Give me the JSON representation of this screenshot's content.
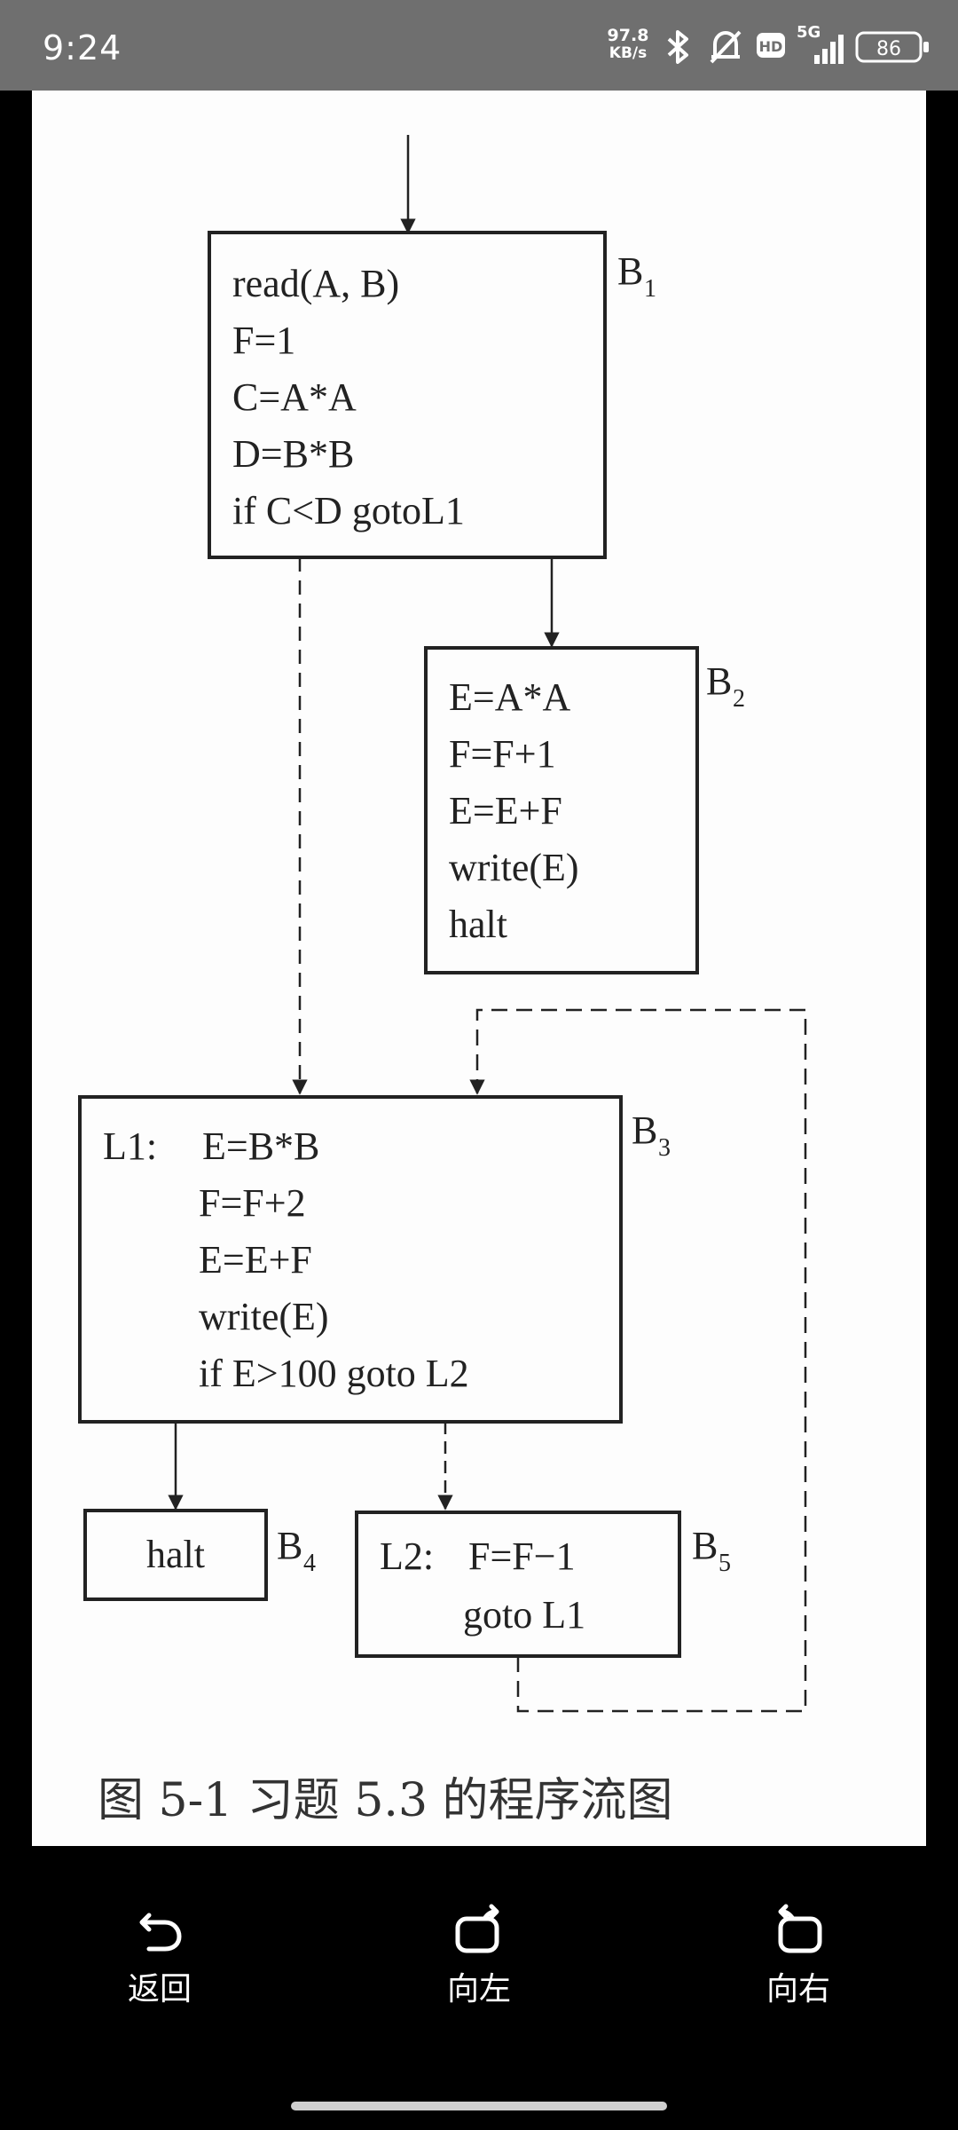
{
  "status_bar": {
    "time": "9:24",
    "net_speed_value": "97.8",
    "net_speed_unit": "KB/s",
    "hd_badge": "HD",
    "network_type": "5G",
    "battery": "86",
    "icons": [
      "bluetooth-icon",
      "mute-bell-icon",
      "hd-icon",
      "signal-icon",
      "battery-icon"
    ]
  },
  "figure": {
    "blocks": [
      {
        "label": "B",
        "sub": "1",
        "lines": [
          "read(A, B)",
          "F=1",
          "C=A*A",
          "D=B*B",
          "if C<D gotoL1"
        ]
      },
      {
        "label": "B",
        "sub": "2",
        "lines": [
          "E=A*A",
          "F=F+1",
          "E=E+F",
          "write(E)",
          "halt"
        ]
      },
      {
        "label": "B",
        "sub": "3",
        "lines": [
          "L1:",
          "E=B*B",
          "F=F+2",
          "E=E+F",
          "write(E)",
          "if E>100 goto L2"
        ]
      },
      {
        "label": "B",
        "sub": "4",
        "lines": [
          "halt"
        ]
      },
      {
        "label": "B",
        "sub": "5",
        "lines": [
          "L2:",
          "F=F−1",
          "goto L1"
        ]
      }
    ],
    "caption": "图 5-1    习题 5.3 的程序流图"
  },
  "bottom_nav": {
    "back": "返回",
    "rotate_left": "向左",
    "rotate_right": "向右"
  }
}
